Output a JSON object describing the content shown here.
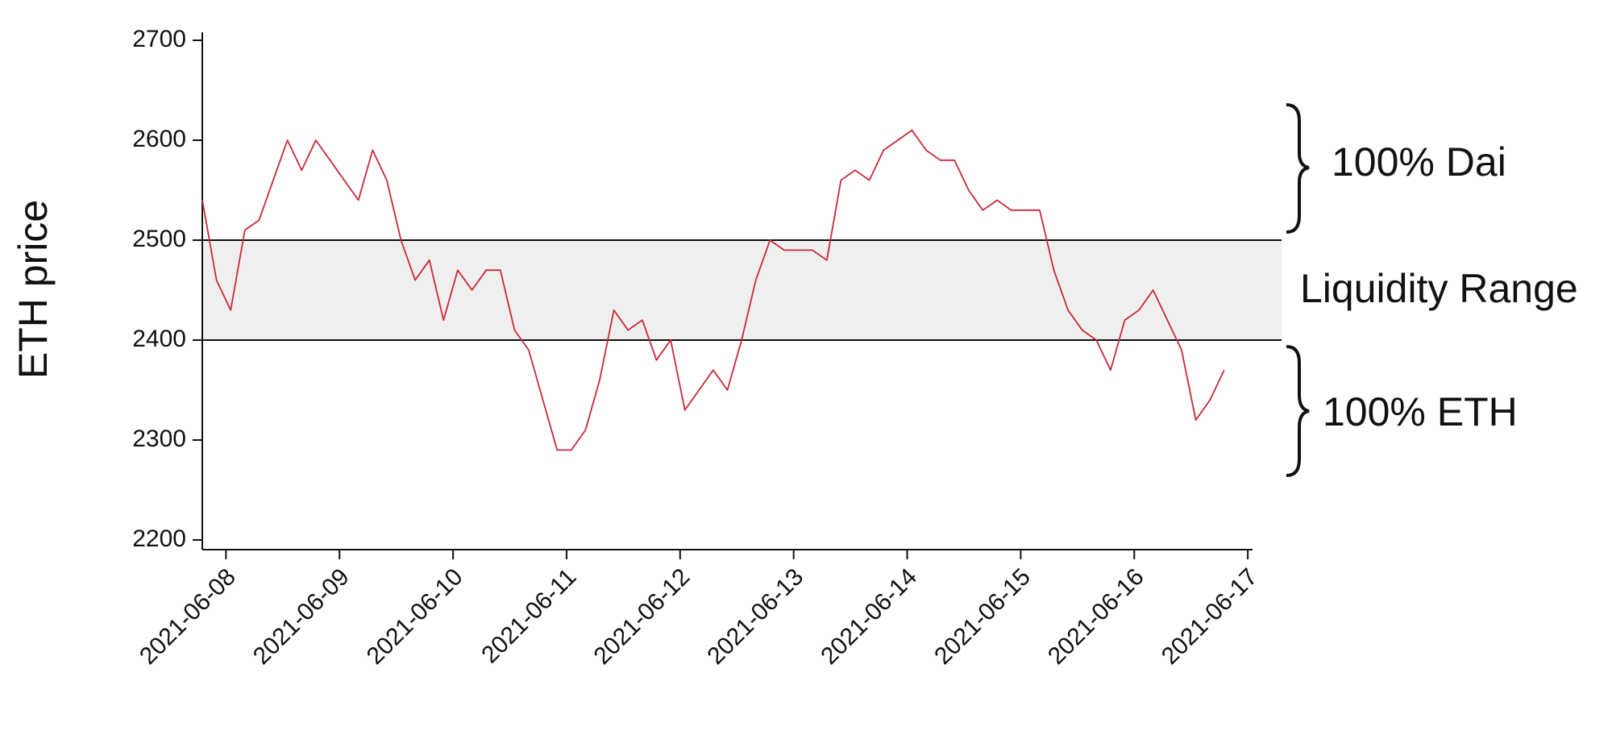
{
  "chart_data": {
    "type": "line",
    "y_label": "ETH price",
    "x": [
      "2021-06-07T19:00",
      "2021-06-07T22:00",
      "2021-06-08T01:00",
      "2021-06-08T04:00",
      "2021-06-08T07:00",
      "2021-06-08T10:00",
      "2021-06-08T13:00",
      "2021-06-08T16:00",
      "2021-06-08T19:00",
      "2021-06-08T22:00",
      "2021-06-09T01:00",
      "2021-06-09T04:00",
      "2021-06-09T07:00",
      "2021-06-09T10:00",
      "2021-06-09T13:00",
      "2021-06-09T16:00",
      "2021-06-09T19:00",
      "2021-06-09T22:00",
      "2021-06-10T01:00",
      "2021-06-10T04:00",
      "2021-06-10T07:00",
      "2021-06-10T10:00",
      "2021-06-10T13:00",
      "2021-06-10T16:00",
      "2021-06-10T19:00",
      "2021-06-10T22:00",
      "2021-06-11T01:00",
      "2021-06-11T04:00",
      "2021-06-11T07:00",
      "2021-06-11T10:00",
      "2021-06-11T13:00",
      "2021-06-11T16:00",
      "2021-06-11T19:00",
      "2021-06-11T22:00",
      "2021-06-12T01:00",
      "2021-06-12T04:00",
      "2021-06-12T07:00",
      "2021-06-12T10:00",
      "2021-06-12T13:00",
      "2021-06-12T16:00",
      "2021-06-12T19:00",
      "2021-06-12T22:00",
      "2021-06-13T01:00",
      "2021-06-13T04:00",
      "2021-06-13T07:00",
      "2021-06-13T10:00",
      "2021-06-13T13:00",
      "2021-06-13T16:00",
      "2021-06-13T19:00",
      "2021-06-13T22:00",
      "2021-06-14T01:00",
      "2021-06-14T04:00",
      "2021-06-14T07:00",
      "2021-06-14T10:00",
      "2021-06-14T13:00",
      "2021-06-14T16:00",
      "2021-06-14T19:00",
      "2021-06-14T22:00",
      "2021-06-15T01:00",
      "2021-06-15T04:00",
      "2021-06-15T07:00",
      "2021-06-15T10:00",
      "2021-06-15T13:00",
      "2021-06-15T16:00",
      "2021-06-15T19:00",
      "2021-06-15T22:00",
      "2021-06-16T01:00",
      "2021-06-16T04:00",
      "2021-06-16T07:00",
      "2021-06-16T10:00",
      "2021-06-16T13:00",
      "2021-06-16T16:00",
      "2021-06-16T19:00"
    ],
    "series": [
      {
        "color": "#c8283a",
        "values": [
          2540,
          2460,
          2430,
          2510,
          2520,
          2560,
          2600,
          2570,
          2600,
          2580,
          2560,
          2540,
          2590,
          2560,
          2500,
          2460,
          2480,
          2420,
          2470,
          2450,
          2470,
          2470,
          2410,
          2390,
          2340,
          2290,
          2290,
          2310,
          2360,
          2430,
          2410,
          2420,
          2380,
          2400,
          2330,
          2350,
          2370,
          2350,
          2400,
          2460,
          2500,
          2490,
          2490,
          2490,
          2480,
          2560,
          2570,
          2560,
          2590,
          2600,
          2610,
          2590,
          2580,
          2580,
          2550,
          2530,
          2540,
          2530,
          2530,
          2530,
          2470,
          2430,
          2410,
          2400,
          2370,
          2420,
          2430,
          2450,
          2420,
          2390,
          2320,
          2340,
          2370
        ]
      }
    ],
    "xlim": [
      "2021-06-07T19:00",
      "2021-06-17T01:00"
    ],
    "xticks": [
      "2021-06-08",
      "2021-06-09",
      "2021-06-10",
      "2021-06-11",
      "2021-06-12",
      "2021-06-13",
      "2021-06-14",
      "2021-06-15",
      "2021-06-16",
      "2021-06-17"
    ],
    "ylim": [
      2200,
      2700
    ],
    "yticks": [
      2200,
      2300,
      2400,
      2500,
      2600,
      2700
    ],
    "liquidity_range": {
      "label": "Liquidity Range",
      "low": 2400,
      "high": 2500,
      "color": "#efefef"
    },
    "upper_label": "100% Dai",
    "lower_label": "100% ETH"
  }
}
